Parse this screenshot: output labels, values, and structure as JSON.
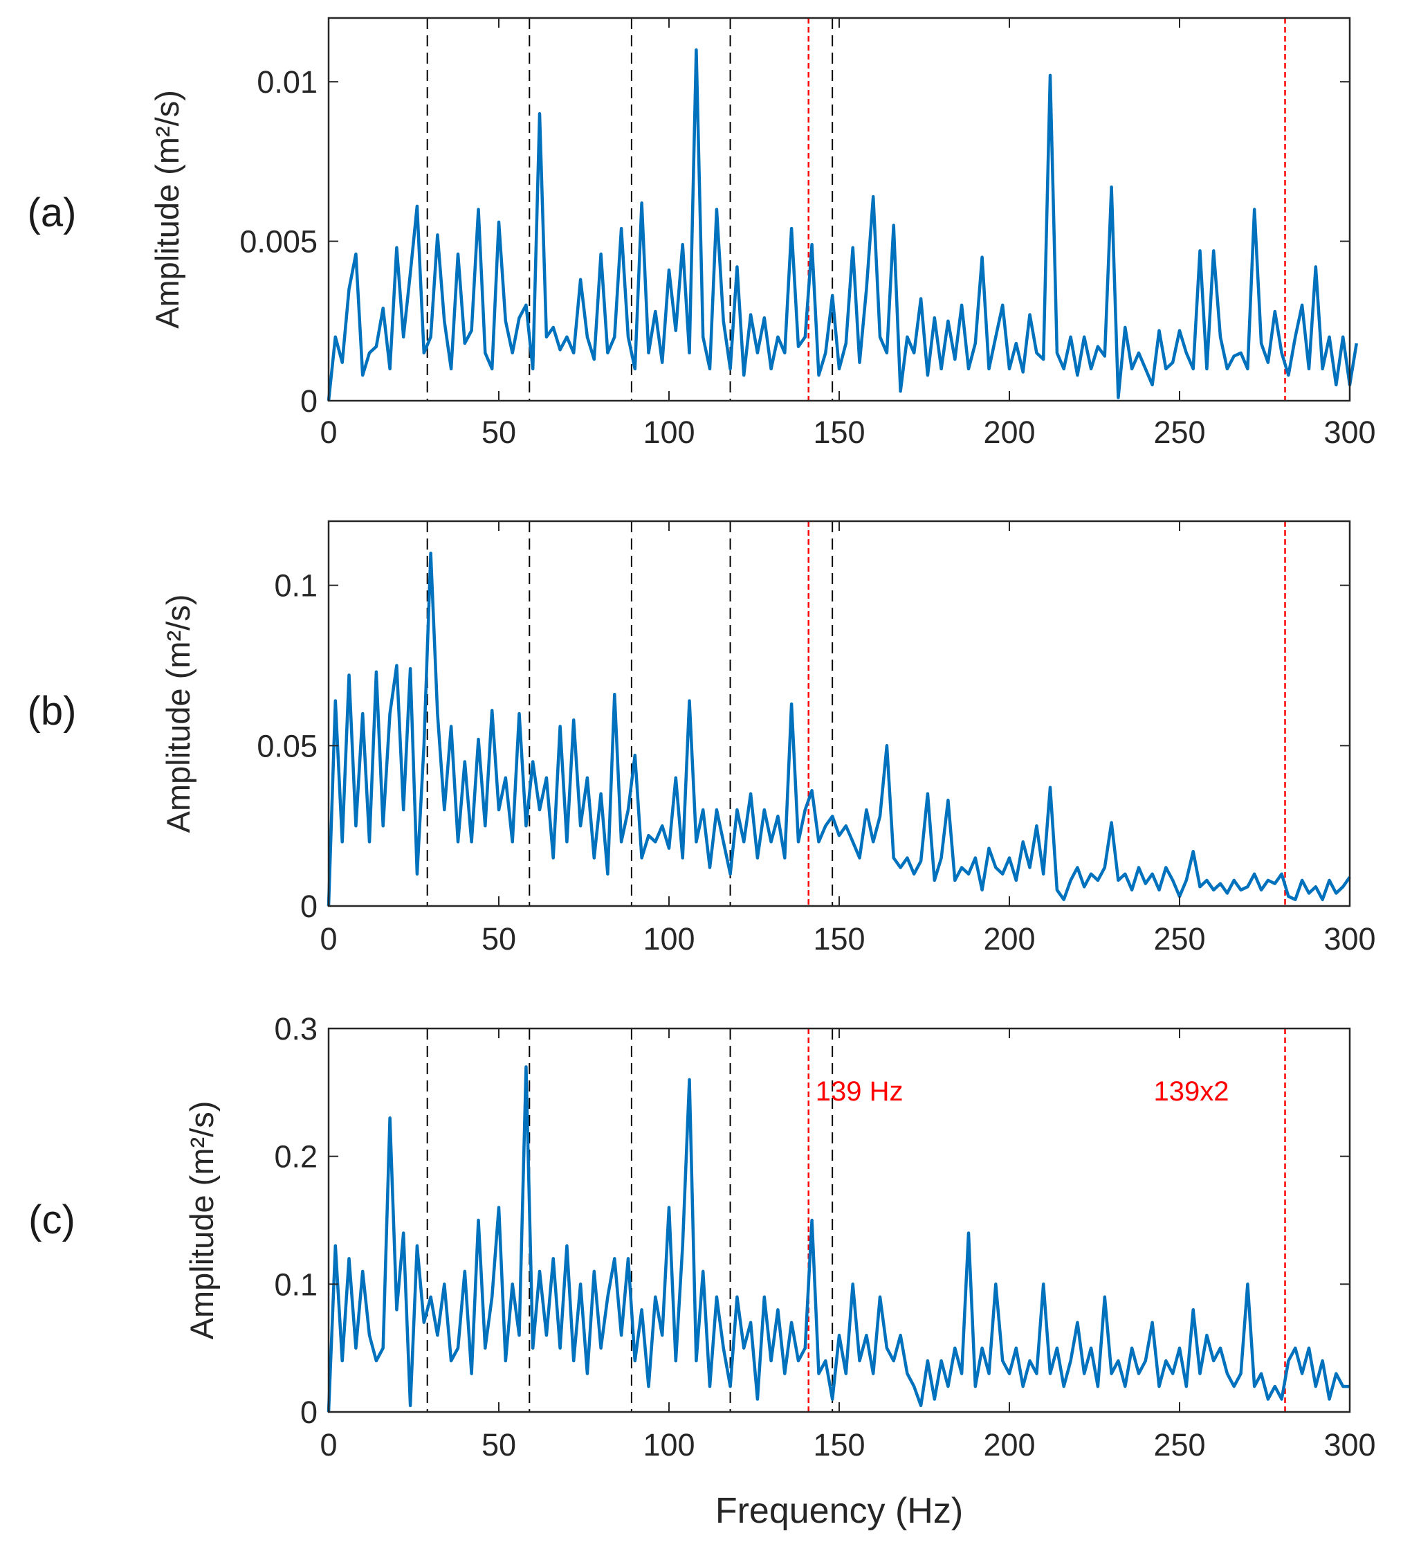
{
  "colors": {
    "series": "#0072BD",
    "marker_black": "#000000",
    "marker_red": "#FF0000",
    "axes": "#262626"
  },
  "chart_data": [
    {
      "type": "line",
      "panel_label": "(a)",
      "xlabel": "",
      "ylabel": "Amplitude (m²/s)",
      "xlim": [
        0,
        300
      ],
      "ylim": [
        0,
        0.012
      ],
      "xticks": [
        "0",
        "50",
        "100",
        "150",
        "200",
        "250",
        "300"
      ],
      "yticks": [
        "0",
        "0.005",
        "0.01"
      ],
      "ytick_values": [
        0,
        0.005,
        0.01
      ],
      "x_step": 2,
      "values": [
        0,
        0.002,
        0.0012,
        0.0035,
        0.0046,
        0.0008,
        0.0015,
        0.0017,
        0.0029,
        0.001,
        0.0048,
        0.002,
        0.004,
        0.0061,
        0.0015,
        0.002,
        0.0052,
        0.0025,
        0.001,
        0.0046,
        0.0018,
        0.0022,
        0.006,
        0.0015,
        0.001,
        0.0056,
        0.0025,
        0.0015,
        0.0026,
        0.003,
        0.001,
        0.009,
        0.002,
        0.0023,
        0.0016,
        0.002,
        0.0015,
        0.0038,
        0.002,
        0.0013,
        0.0046,
        0.0015,
        0.002,
        0.0054,
        0.002,
        0.001,
        0.0062,
        0.0015,
        0.0028,
        0.0012,
        0.0041,
        0.0022,
        0.0049,
        0.0015,
        0.011,
        0.002,
        0.001,
        0.006,
        0.0025,
        0.001,
        0.0042,
        0.0008,
        0.0027,
        0.0015,
        0.0026,
        0.001,
        0.002,
        0.0015,
        0.0054,
        0.0017,
        0.002,
        0.0049,
        0.0008,
        0.0015,
        0.0033,
        0.001,
        0.0018,
        0.0048,
        0.0012,
        0.0035,
        0.0064,
        0.002,
        0.0015,
        0.0055,
        0.0003,
        0.002,
        0.0015,
        0.0032,
        0.0008,
        0.0026,
        0.001,
        0.0025,
        0.0013,
        0.003,
        0.001,
        0.0018,
        0.0045,
        0.001,
        0.002,
        0.003,
        0.001,
        0.0018,
        0.0009,
        0.0027,
        0.0015,
        0.0013,
        0.0102,
        0.0015,
        0.001,
        0.002,
        0.0008,
        0.002,
        0.001,
        0.0017,
        0.0014,
        0.0067,
        0.0001,
        0.0023,
        0.001,
        0.0015,
        0.001,
        0.0005,
        0.0022,
        0.001,
        0.0012,
        0.0022,
        0.0015,
        0.001,
        0.0047,
        0.001,
        0.0047,
        0.002,
        0.001,
        0.0014,
        0.0015,
        0.001,
        0.006,
        0.0018,
        0.0012,
        0.0028,
        0.0015,
        0.0008,
        0.002,
        0.003,
        0.001,
        0.0042,
        0.001,
        0.002,
        0.0005,
        0.002,
        0.0005,
        0.0018
      ]
    },
    {
      "type": "line",
      "panel_label": "(b)",
      "xlabel": "",
      "ylabel": "Amplitude (m²/s)",
      "xlim": [
        0,
        300
      ],
      "ylim": [
        0,
        0.12
      ],
      "xticks": [
        "0",
        "50",
        "100",
        "150",
        "200",
        "250",
        "300"
      ],
      "yticks": [
        "0",
        "0.05",
        "0.1"
      ],
      "ytick_values": [
        0,
        0.05,
        0.1
      ],
      "x_step": 2,
      "values": [
        0,
        0.064,
        0.02,
        0.072,
        0.025,
        0.06,
        0.02,
        0.073,
        0.025,
        0.06,
        0.075,
        0.03,
        0.074,
        0.01,
        0.05,
        0.11,
        0.06,
        0.03,
        0.056,
        0.02,
        0.045,
        0.02,
        0.052,
        0.025,
        0.061,
        0.03,
        0.04,
        0.02,
        0.06,
        0.025,
        0.045,
        0.03,
        0.04,
        0.015,
        0.056,
        0.02,
        0.058,
        0.025,
        0.04,
        0.015,
        0.035,
        0.01,
        0.066,
        0.02,
        0.03,
        0.047,
        0.015,
        0.022,
        0.02,
        0.025,
        0.018,
        0.04,
        0.015,
        0.064,
        0.02,
        0.03,
        0.012,
        0.03,
        0.02,
        0.01,
        0.03,
        0.02,
        0.035,
        0.015,
        0.03,
        0.02,
        0.028,
        0.015,
        0.063,
        0.02,
        0.03,
        0.036,
        0.02,
        0.025,
        0.028,
        0.022,
        0.025,
        0.02,
        0.015,
        0.03,
        0.02,
        0.028,
        0.05,
        0.015,
        0.012,
        0.015,
        0.01,
        0.014,
        0.035,
        0.008,
        0.015,
        0.033,
        0.008,
        0.012,
        0.01,
        0.015,
        0.005,
        0.018,
        0.012,
        0.01,
        0.015,
        0.008,
        0.02,
        0.012,
        0.025,
        0.01,
        0.037,
        0.005,
        0.002,
        0.008,
        0.012,
        0.006,
        0.01,
        0.008,
        0.012,
        0.026,
        0.008,
        0.01,
        0.005,
        0.012,
        0.007,
        0.01,
        0.005,
        0.012,
        0.008,
        0.003,
        0.008,
        0.017,
        0.006,
        0.008,
        0.005,
        0.007,
        0.004,
        0.008,
        0.005,
        0.006,
        0.01,
        0.005,
        0.008,
        0.007,
        0.01,
        0.003,
        0.002,
        0.008,
        0.004,
        0.006,
        0.002,
        0.008,
        0.004,
        0.006,
        0.009
      ]
    },
    {
      "type": "line",
      "panel_label": "(c)",
      "xlabel": "Frequency (Hz)",
      "ylabel": "Amplitude (m²/s)",
      "xlim": [
        0,
        300
      ],
      "ylim": [
        0,
        0.3
      ],
      "xticks": [
        "0",
        "50",
        "100",
        "150",
        "200",
        "250",
        "300"
      ],
      "yticks": [
        "0",
        "0.1",
        "0.2",
        "0.3"
      ],
      "ytick_values": [
        0,
        0.1,
        0.2,
        0.3
      ],
      "x_step": 2,
      "values": [
        0,
        0.13,
        0.04,
        0.12,
        0.05,
        0.11,
        0.06,
        0.04,
        0.05,
        0.23,
        0.08,
        0.14,
        0.005,
        0.13,
        0.07,
        0.09,
        0.06,
        0.1,
        0.04,
        0.05,
        0.11,
        0.03,
        0.15,
        0.05,
        0.09,
        0.16,
        0.04,
        0.1,
        0.06,
        0.27,
        0.05,
        0.11,
        0.06,
        0.12,
        0.05,
        0.13,
        0.04,
        0.1,
        0.03,
        0.11,
        0.05,
        0.09,
        0.12,
        0.06,
        0.12,
        0.04,
        0.08,
        0.02,
        0.09,
        0.06,
        0.16,
        0.04,
        0.13,
        0.26,
        0.04,
        0.11,
        0.02,
        0.09,
        0.05,
        0.02,
        0.09,
        0.05,
        0.07,
        0.01,
        0.09,
        0.04,
        0.08,
        0.03,
        0.07,
        0.04,
        0.05,
        0.15,
        0.03,
        0.04,
        0.01,
        0.06,
        0.03,
        0.1,
        0.04,
        0.06,
        0.03,
        0.09,
        0.05,
        0.04,
        0.06,
        0.03,
        0.02,
        0.005,
        0.04,
        0.01,
        0.04,
        0.02,
        0.05,
        0.03,
        0.14,
        0.02,
        0.05,
        0.03,
        0.1,
        0.04,
        0.03,
        0.05,
        0.02,
        0.04,
        0.03,
        0.1,
        0.03,
        0.05,
        0.02,
        0.04,
        0.07,
        0.03,
        0.05,
        0.02,
        0.09,
        0.03,
        0.04,
        0.02,
        0.05,
        0.03,
        0.04,
        0.07,
        0.02,
        0.04,
        0.03,
        0.05,
        0.02,
        0.08,
        0.03,
        0.06,
        0.04,
        0.05,
        0.03,
        0.02,
        0.03,
        0.1,
        0.02,
        0.03,
        0.01,
        0.02,
        0.01,
        0.04,
        0.05,
        0.03,
        0.05,
        0.02,
        0.04,
        0.01,
        0.03,
        0.02,
        0.02
      ],
      "annotations": [
        {
          "text": "139 Hz",
          "x": 141
        },
        {
          "text": "139x2",
          "x": 281
        }
      ]
    }
  ],
  "reference_lines": {
    "black_dashed_hz": [
      29,
      59,
      89,
      118,
      148
    ],
    "red_dashed_hz": [
      141,
      281
    ]
  }
}
